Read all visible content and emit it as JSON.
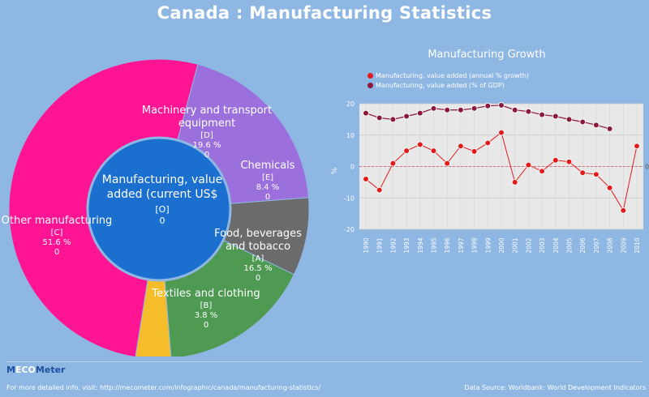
{
  "title": "Canada : Manufacturing Statistics",
  "brand": {
    "prefix": "M",
    "mid": "ECO",
    "suffix": "Meter"
  },
  "footer": {
    "url_text": "For more detailed info, visit: http://mecometer.com/infographic/canada/manufacturing-statistics/",
    "source_text": "Data Source: Worldbank: World Development Indicators"
  },
  "chart_data": [
    {
      "type": "pie",
      "variant": "donut",
      "center": {
        "name": "Manufacturing, value added (current US$",
        "code": "[O]",
        "value": "0"
      },
      "slices": [
        {
          "name": "Machinery and transport equipment",
          "code": "[D]",
          "percent": 19.6,
          "percent_label": "19.6 %",
          "value": "0",
          "color": "#9b70dc"
        },
        {
          "name": "Chemicals",
          "code": "[E]",
          "percent": 8.4,
          "percent_label": "8.4 %",
          "value": "0",
          "color": "#6b6b6b"
        },
        {
          "name": "Food, beverages and tobacco",
          "code": "[A]",
          "percent": 16.5,
          "percent_label": "16.5 %",
          "value": "0",
          "color": "#4f9a52"
        },
        {
          "name": "Textiles and clothing",
          "code": "[B]",
          "percent": 3.8,
          "percent_label": "3.8 %",
          "value": "0",
          "color": "#f6bd2a"
        },
        {
          "name": "Other manufacturing",
          "code": "[C]",
          "percent": 51.6,
          "percent_label": "51.6 %",
          "value": "0",
          "color": "#ff1493"
        }
      ]
    },
    {
      "type": "line",
      "title": "Manufacturing Growth",
      "ylabel": "%",
      "ylim": [
        -20,
        20
      ],
      "yticks": [
        -20,
        -10,
        0,
        10,
        20
      ],
      "grid": true,
      "legend": "top",
      "reference_line": {
        "y": 0,
        "label": "0"
      },
      "x": [
        "1990",
        "1991",
        "1992",
        "1993",
        "1994",
        "1995",
        "1996",
        "1997",
        "1998",
        "1999",
        "2000",
        "2001",
        "2002",
        "2003",
        "2004",
        "2005",
        "2006",
        "2007",
        "2008",
        "2009",
        "2010"
      ],
      "series": [
        {
          "name": "Manufacturing, value added (annual % growth)",
          "color": "#e31a1c",
          "values": [
            -4,
            -7.5,
            1,
            5,
            7,
            5,
            1,
            6.5,
            4.8,
            7.5,
            10.8,
            -5,
            0.5,
            -1.5,
            2,
            1.5,
            -2,
            -2.5,
            -6.8,
            -14,
            6.5
          ]
        },
        {
          "name": "Manufacturing, value added (% of GDP)",
          "color": "#8b1a3a",
          "values": [
            17,
            15.5,
            15,
            16,
            17,
            18.5,
            18,
            18,
            18.5,
            19.3,
            19.5,
            18,
            17.5,
            16.5,
            16,
            15,
            14.2,
            13.2,
            12,
            null,
            null
          ]
        }
      ]
    }
  ]
}
